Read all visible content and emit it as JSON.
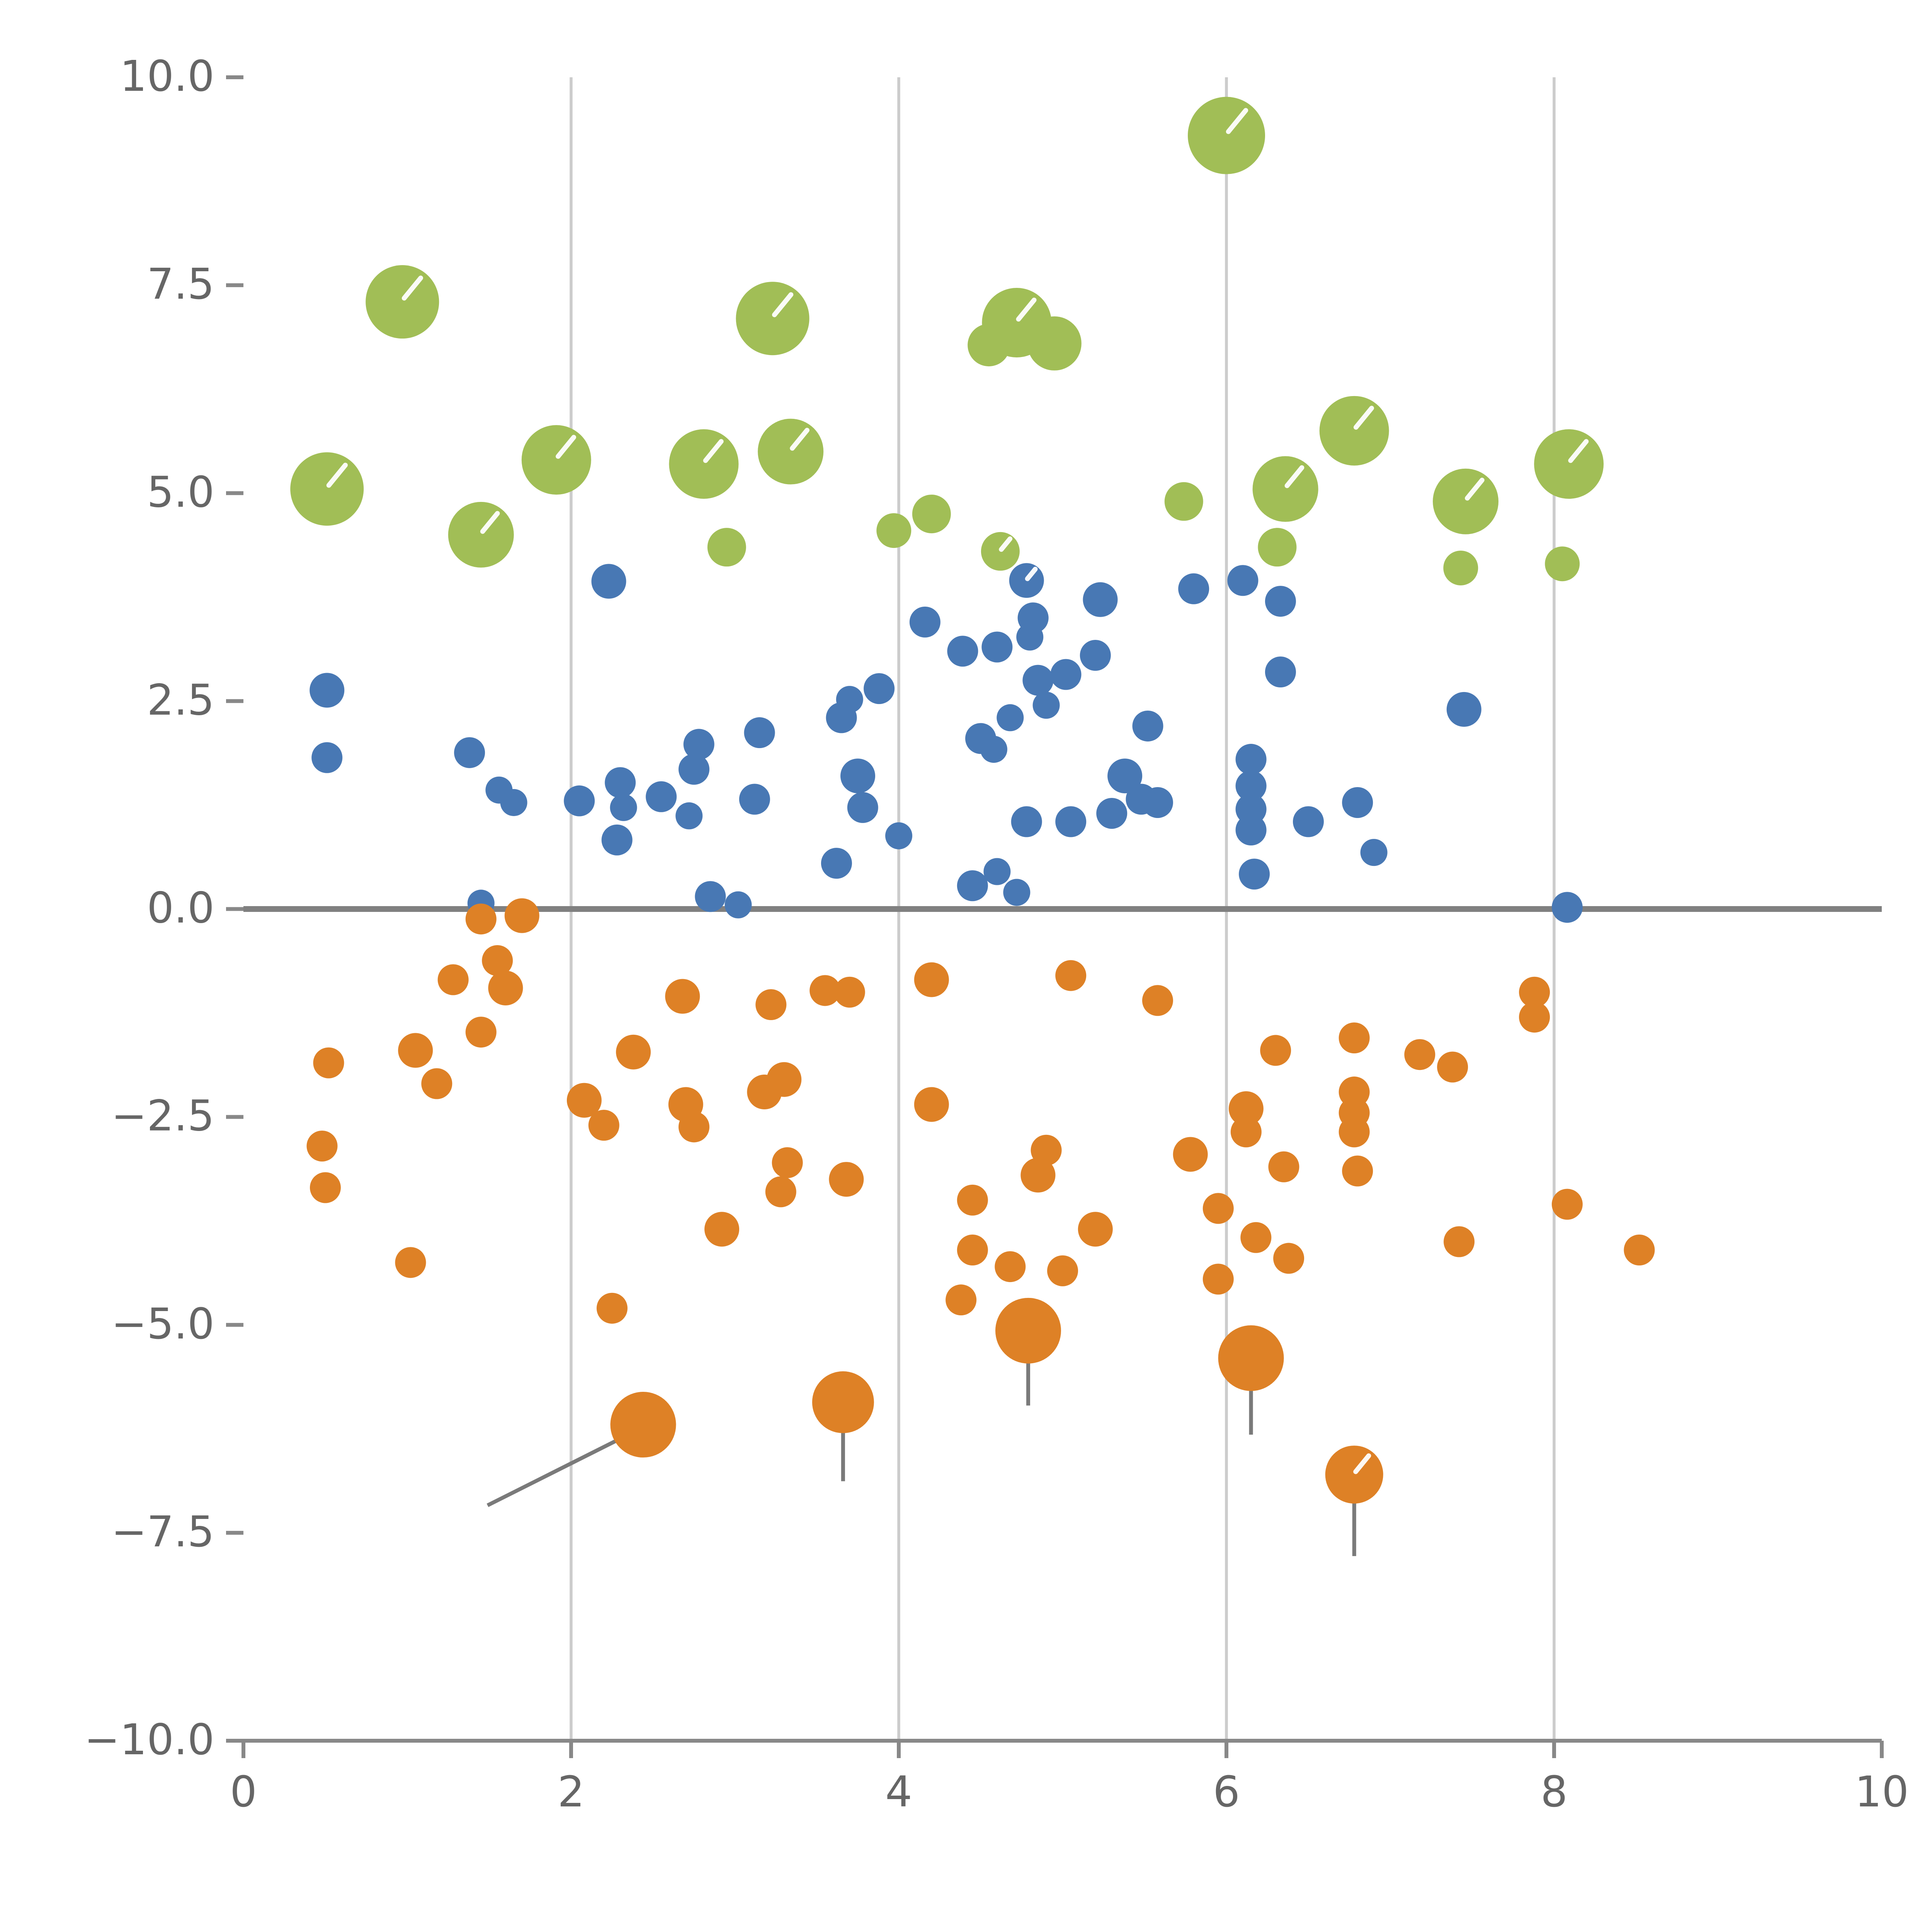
{
  "figure": {
    "background": "#ffffff"
  },
  "chart_data": {
    "type": "scatter",
    "title": "",
    "xlabel": "",
    "ylabel": "",
    "xlim": [
      0,
      10
    ],
    "ylim": [
      -10,
      10
    ],
    "grid": "vertical-only",
    "legend": "none",
    "gridlines_x": [
      2,
      4,
      6,
      8
    ],
    "grid_color": "#cccccc",
    "axis_color": "#888888",
    "tick_label_color": "#666666",
    "zero_line": {
      "y": 0,
      "color": "#808080",
      "width": 3
    },
    "x_ticks": [
      {
        "value": 0,
        "label": "0"
      },
      {
        "value": 2,
        "label": "2"
      },
      {
        "value": 4,
        "label": "4"
      },
      {
        "value": 6,
        "label": "6"
      },
      {
        "value": 8,
        "label": "8"
      },
      {
        "value": 10,
        "label": "10"
      }
    ],
    "y_ticks": [
      {
        "value": 10,
        "label": "10.0"
      },
      {
        "value": 7.5,
        "label": "7.5"
      },
      {
        "value": 5,
        "label": "5.0"
      },
      {
        "value": 2.5,
        "label": "2.5"
      },
      {
        "value": 0,
        "label": "0.0"
      },
      {
        "value": -2.5,
        "label": "−2.5"
      },
      {
        "value": -5,
        "label": "−5.0"
      },
      {
        "value": -7.5,
        "label": "−7.5"
      },
      {
        "value": -10,
        "label": "−10.0"
      }
    ],
    "point_format": [
      "x",
      "y",
      "radius_svg_units",
      "white_highlight_flag"
    ],
    "series": [
      {
        "name": "group-green",
        "color": "#A1BE56",
        "points": [
          [
            6.0,
            9.3,
            20,
            1
          ],
          [
            0.97,
            7.3,
            19,
            1
          ],
          [
            3.23,
            7.1,
            19,
            1
          ],
          [
            4.72,
            7.05,
            18,
            1
          ],
          [
            4.95,
            6.8,
            14,
            0
          ],
          [
            4.55,
            6.78,
            11,
            0
          ],
          [
            6.78,
            5.75,
            18,
            1
          ],
          [
            0.51,
            5.05,
            19,
            1
          ],
          [
            1.91,
            5.4,
            18,
            1
          ],
          [
            2.81,
            5.35,
            18,
            1
          ],
          [
            3.34,
            5.5,
            17,
            1
          ],
          [
            8.09,
            5.35,
            18,
            1
          ],
          [
            7.46,
            4.9,
            17,
            1
          ],
          [
            6.36,
            5.05,
            17,
            1
          ],
          [
            5.74,
            4.9,
            10,
            0
          ],
          [
            1.45,
            4.5,
            17,
            1
          ],
          [
            3.97,
            4.55,
            9,
            0
          ],
          [
            4.2,
            4.75,
            10,
            0
          ],
          [
            2.95,
            4.35,
            10,
            0
          ],
          [
            4.62,
            4.3,
            10,
            1
          ],
          [
            6.31,
            4.35,
            10,
            0
          ],
          [
            7.43,
            4.1,
            9,
            0
          ],
          [
            8.05,
            4.15,
            9,
            0
          ]
        ]
      },
      {
        "name": "group-blue",
        "color": "#4878B4",
        "points": [
          [
            0.51,
            2.63,
            9,
            0
          ],
          [
            0.51,
            1.82,
            8,
            0
          ],
          [
            1.38,
            1.88,
            8,
            0
          ],
          [
            1.56,
            1.43,
            7,
            0
          ],
          [
            1.65,
            1.28,
            7,
            0
          ],
          [
            2.05,
            1.3,
            8,
            0
          ],
          [
            2.23,
            3.94,
            9,
            0
          ],
          [
            2.3,
            1.52,
            8,
            0
          ],
          [
            2.32,
            1.22,
            7,
            0
          ],
          [
            2.28,
            0.83,
            8,
            0
          ],
          [
            2.55,
            1.35,
            8,
            0
          ],
          [
            2.75,
            1.68,
            8,
            0
          ],
          [
            2.78,
            1.98,
            8,
            0
          ],
          [
            2.72,
            1.12,
            7,
            0
          ],
          [
            2.85,
            0.15,
            8,
            0
          ],
          [
            3.02,
            0.05,
            7,
            0
          ],
          [
            1.45,
            0.07,
            7,
            0
          ],
          [
            3.15,
            2.12,
            8,
            0
          ],
          [
            3.12,
            1.32,
            8,
            0
          ],
          [
            3.62,
            0.55,
            8,
            0
          ],
          [
            3.65,
            2.3,
            8,
            0
          ],
          [
            3.7,
            2.52,
            7,
            0
          ],
          [
            3.75,
            1.6,
            9,
            0
          ],
          [
            3.78,
            1.22,
            8,
            0
          ],
          [
            3.88,
            2.65,
            8,
            0
          ],
          [
            4.0,
            0.88,
            7,
            0
          ],
          [
            4.16,
            3.45,
            8,
            0
          ],
          [
            4.39,
            3.1,
            8,
            0
          ],
          [
            4.45,
            0.28,
            8,
            0
          ],
          [
            4.5,
            2.05,
            8,
            0
          ],
          [
            4.58,
            1.92,
            7,
            0
          ],
          [
            4.6,
            3.15,
            8,
            0
          ],
          [
            4.6,
            0.45,
            7,
            0
          ],
          [
            4.68,
            2.3,
            7,
            0
          ],
          [
            4.72,
            0.2,
            7,
            0
          ],
          [
            4.78,
            1.05,
            8,
            0
          ],
          [
            4.78,
            3.95,
            9,
            1
          ],
          [
            4.82,
            3.5,
            8,
            0
          ],
          [
            4.8,
            3.27,
            7,
            0
          ],
          [
            4.85,
            2.75,
            8,
            0
          ],
          [
            4.9,
            2.45,
            7,
            0
          ],
          [
            5.02,
            2.82,
            8,
            0
          ],
          [
            5.05,
            1.05,
            8,
            0
          ],
          [
            5.2,
            3.05,
            8,
            0
          ],
          [
            5.23,
            3.72,
            9,
            0
          ],
          [
            5.3,
            1.15,
            8,
            0
          ],
          [
            5.38,
            1.6,
            9,
            0
          ],
          [
            5.48,
            1.32,
            8,
            0
          ],
          [
            5.52,
            2.2,
            8,
            0
          ],
          [
            5.58,
            1.28,
            8,
            0
          ],
          [
            5.8,
            3.85,
            8,
            0
          ],
          [
            6.1,
            3.95,
            8,
            0
          ],
          [
            6.15,
            1.8,
            8,
            0
          ],
          [
            6.15,
            1.48,
            8,
            0
          ],
          [
            6.15,
            1.2,
            8,
            0
          ],
          [
            6.15,
            0.95,
            8,
            0
          ],
          [
            6.17,
            0.42,
            8,
            0
          ],
          [
            6.33,
            3.7,
            8,
            0
          ],
          [
            6.33,
            2.85,
            8,
            0
          ],
          [
            6.5,
            1.05,
            8,
            0
          ],
          [
            6.8,
            1.28,
            8,
            0
          ],
          [
            6.9,
            0.68,
            7,
            0
          ],
          [
            7.45,
            2.4,
            9,
            0
          ],
          [
            8.08,
            0.02,
            8,
            0
          ]
        ]
      },
      {
        "name": "group-orange",
        "color": "#DE8126",
        "points": [
          [
            1.45,
            -0.12,
            8,
            0
          ],
          [
            1.7,
            -0.08,
            9,
            0
          ],
          [
            1.55,
            -0.62,
            8,
            0
          ],
          [
            1.6,
            -0.95,
            9,
            0
          ],
          [
            1.45,
            -1.48,
            8,
            0
          ],
          [
            1.28,
            -0.85,
            8,
            0
          ],
          [
            1.05,
            -1.7,
            9,
            0
          ],
          [
            1.18,
            -2.1,
            8,
            0
          ],
          [
            0.52,
            -1.85,
            8,
            0
          ],
          [
            0.48,
            -2.85,
            8,
            0
          ],
          [
            0.5,
            -3.35,
            8,
            0
          ],
          [
            1.02,
            -4.25,
            8,
            0
          ],
          [
            2.08,
            -2.3,
            9,
            0
          ],
          [
            2.2,
            -2.6,
            8,
            0
          ],
          [
            2.25,
            -4.8,
            8,
            0
          ],
          [
            2.38,
            -1.72,
            9,
            0
          ],
          [
            2.44,
            -6.2,
            17,
            0
          ],
          [
            2.68,
            -1.05,
            9,
            0
          ],
          [
            2.7,
            -2.35,
            9,
            0
          ],
          [
            2.75,
            -2.62,
            8,
            0
          ],
          [
            2.92,
            -3.85,
            9,
            0
          ],
          [
            3.18,
            -2.2,
            9,
            0
          ],
          [
            3.22,
            -1.15,
            8,
            0
          ],
          [
            3.3,
            -2.05,
            9,
            0
          ],
          [
            3.32,
            -3.05,
            8,
            0
          ],
          [
            3.28,
            -3.4,
            8,
            0
          ],
          [
            3.68,
            -3.25,
            9,
            0
          ],
          [
            3.7,
            -1.0,
            8,
            0
          ],
          [
            3.55,
            -0.98,
            8,
            0
          ],
          [
            3.66,
            -5.93,
            16,
            0
          ],
          [
            4.2,
            -0.85,
            9,
            0
          ],
          [
            4.2,
            -2.35,
            9,
            0
          ],
          [
            4.38,
            -4.7,
            8,
            0
          ],
          [
            4.45,
            -3.5,
            8,
            0
          ],
          [
            4.45,
            -4.1,
            8,
            0
          ],
          [
            4.68,
            -4.3,
            8,
            0
          ],
          [
            4.79,
            -5.07,
            17,
            0
          ],
          [
            4.85,
            -3.2,
            9,
            0
          ],
          [
            4.9,
            -2.9,
            8,
            0
          ],
          [
            5.0,
            -4.35,
            8,
            0
          ],
          [
            5.05,
            -0.8,
            8,
            0
          ],
          [
            5.2,
            -3.85,
            9,
            0
          ],
          [
            5.58,
            -1.1,
            8,
            0
          ],
          [
            5.78,
            -2.95,
            9,
            0
          ],
          [
            5.95,
            -3.6,
            8,
            0
          ],
          [
            5.95,
            -4.45,
            8,
            0
          ],
          [
            6.12,
            -2.4,
            9,
            0
          ],
          [
            6.12,
            -2.68,
            8,
            0
          ],
          [
            6.18,
            -3.95,
            8,
            0
          ],
          [
            6.15,
            -5.4,
            17,
            0
          ],
          [
            6.3,
            -1.7,
            8,
            0
          ],
          [
            6.35,
            -3.1,
            8,
            0
          ],
          [
            6.38,
            -4.2,
            8,
            0
          ],
          [
            6.78,
            -1.55,
            8,
            0
          ],
          [
            6.78,
            -2.2,
            8,
            0
          ],
          [
            6.78,
            -2.45,
            8,
            0
          ],
          [
            6.78,
            -2.68,
            8,
            0
          ],
          [
            6.8,
            -3.15,
            8,
            0
          ],
          [
            6.78,
            -6.8,
            15,
            1
          ],
          [
            7.18,
            -1.75,
            8,
            0
          ],
          [
            7.38,
            -1.9,
            8,
            0
          ],
          [
            7.42,
            -4.0,
            8,
            0
          ],
          [
            7.88,
            -1.0,
            8,
            0
          ],
          [
            7.88,
            -1.3,
            8,
            0
          ],
          [
            8.08,
            -3.55,
            8,
            0
          ],
          [
            8.52,
            -4.1,
            8,
            0
          ]
        ]
      }
    ],
    "annotation_lines": [
      {
        "x1": 1.49,
        "y1": -7.17,
        "x2": 2.42,
        "y2": -6.25
      },
      {
        "x1": 3.66,
        "y1": -5.95,
        "x2": 3.66,
        "y2": -6.88
      },
      {
        "x1": 4.79,
        "y1": -5.1,
        "x2": 4.79,
        "y2": -5.97
      },
      {
        "x1": 6.15,
        "y1": -5.45,
        "x2": 6.15,
        "y2": -6.32
      },
      {
        "x1": 6.78,
        "y1": -6.85,
        "x2": 6.78,
        "y2": -7.78
      }
    ],
    "annotation_line_color": "#7a7a7a"
  }
}
